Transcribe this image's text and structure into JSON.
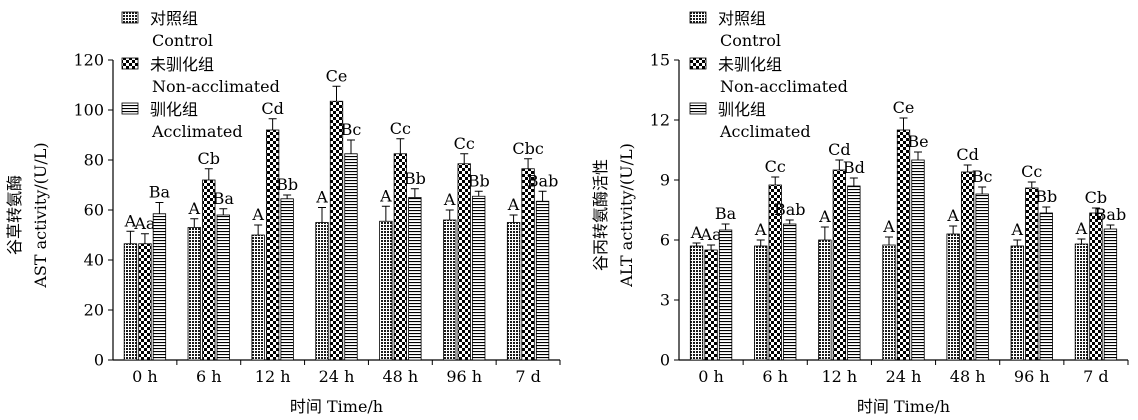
{
  "chart_data": [
    {
      "type": "bar",
      "categories": [
        "0 h",
        "6 h",
        "12 h",
        "24 h",
        "48 h",
        "96 h",
        "7 d"
      ],
      "ylabel": [
        "谷草转氨酶",
        "AST activity/(U/L)"
      ],
      "xlabel": "时间 Time/h",
      "ylim": [
        0,
        120
      ],
      "yticks": [
        0,
        20,
        40,
        60,
        80,
        100,
        120
      ],
      "series": [
        {
          "name": [
            "对照组",
            "Control"
          ],
          "values": [
            46.5,
            53,
            50,
            55,
            55.5,
            56,
            55
          ],
          "errors": [
            5,
            3.5,
            4,
            6,
            6,
            4,
            3
          ],
          "labels": [
            "A",
            "A",
            "A",
            "A",
            "A",
            "A",
            "A"
          ]
        },
        {
          "name": [
            "未驯化组",
            "Non-acclimated"
          ],
          "values": [
            46.5,
            72,
            92,
            103.5,
            82.5,
            78.5,
            76.5
          ],
          "errors": [
            4,
            4.5,
            4.5,
            6,
            6,
            4,
            4
          ],
          "labels": [
            "Aa",
            "Cb",
            "Cd",
            "Ce",
            "Cc",
            "Cc",
            "Cbc"
          ]
        },
        {
          "name": [
            "驯化组",
            "Acclimated"
          ],
          "values": [
            58.5,
            58,
            64.5,
            82.5,
            65,
            65.5,
            63.5
          ],
          "errors": [
            4.5,
            2.5,
            1.5,
            5.5,
            3.5,
            2,
            4
          ],
          "labels": [
            "Ba",
            "Ba",
            "Bb",
            "Bc",
            "Bb",
            "Bb",
            "Bab"
          ]
        }
      ]
    },
    {
      "type": "bar",
      "categories": [
        "0 h",
        "6 h",
        "12 h",
        "24 h",
        "48 h",
        "96 h",
        "7 d"
      ],
      "ylabel": [
        "谷丙转氨酶活性",
        "ALT activity/(U/L)"
      ],
      "xlabel": "时间 Time/h",
      "ylim": [
        0,
        15
      ],
      "yticks": [
        0,
        3,
        6,
        9,
        12,
        15
      ],
      "series": [
        {
          "name": [
            "对照组",
            "Control"
          ],
          "values": [
            5.7,
            5.7,
            6.0,
            5.75,
            6.3,
            5.7,
            5.8
          ],
          "errors": [
            0.15,
            0.3,
            0.65,
            0.4,
            0.4,
            0.3,
            0.25
          ],
          "labels": [
            "A",
            "A",
            "A",
            "A",
            "A",
            "A",
            "A"
          ]
        },
        {
          "name": [
            "未驯化组",
            "Non-acclimated"
          ],
          "values": [
            5.5,
            8.75,
            9.5,
            11.5,
            9.4,
            8.6,
            7.35
          ],
          "errors": [
            0.25,
            0.4,
            0.5,
            0.6,
            0.35,
            0.3,
            0.25
          ],
          "labels": [
            "Aa",
            "Cc",
            "Cd",
            "Ce",
            "Cd",
            "Cc",
            "Cb"
          ]
        },
        {
          "name": [
            "驯化组",
            "Acclimated"
          ],
          "values": [
            6.5,
            6.8,
            8.7,
            10.0,
            8.3,
            7.35,
            6.55
          ],
          "errors": [
            0.3,
            0.2,
            0.4,
            0.4,
            0.35,
            0.3,
            0.2
          ],
          "labels": [
            "Ba",
            "Bab",
            "Bd",
            "Be",
            "Bc",
            "Bb",
            "Bab"
          ]
        }
      ]
    }
  ]
}
